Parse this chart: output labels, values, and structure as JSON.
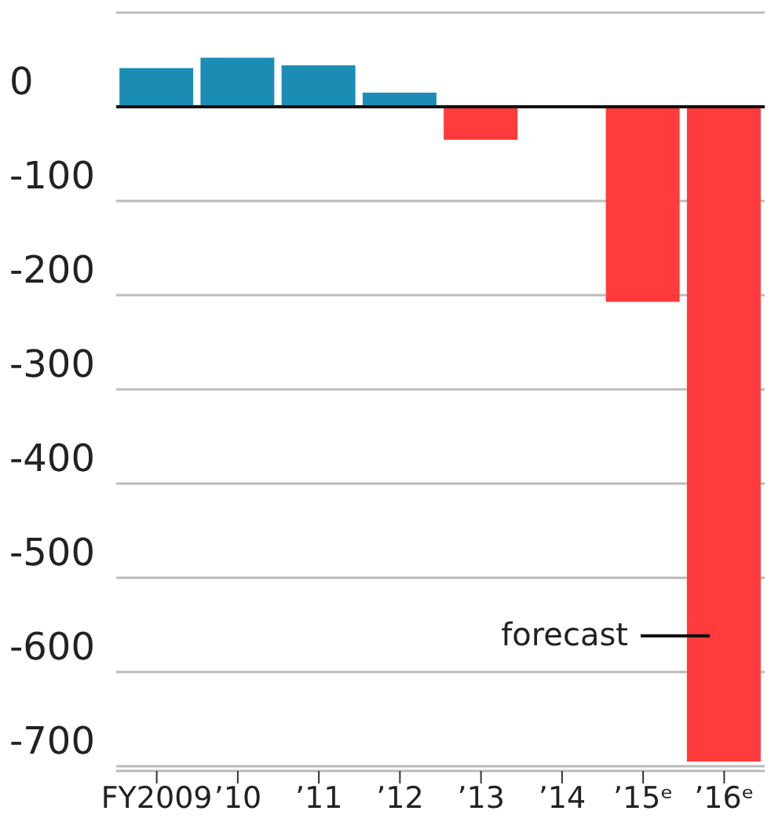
{
  "chart_data": {
    "type": "bar",
    "categories": [
      "FY2009",
      "’10",
      "’11",
      "’12",
      "’13",
      "’14",
      "’15ᵉ",
      "’16ᵉ"
    ],
    "values": [
      41,
      52,
      44,
      15,
      -35,
      null,
      -207,
      -695
    ],
    "colors": [
      "#1b8db5",
      "#1b8db5",
      "#1b8db5",
      "#1b8db5",
      "#ff3b3b",
      "#ff3b3b",
      "#ff3b3b",
      "#ff3b3b"
    ],
    "ylim": [
      -705,
      100
    ],
    "yticks": [
      {
        "value": 100,
        "label": null
      },
      0,
      -100,
      -200,
      -300,
      -400,
      -500,
      -600,
      -700
    ],
    "grid": "y",
    "annotations": [
      "forecast"
    ]
  }
}
